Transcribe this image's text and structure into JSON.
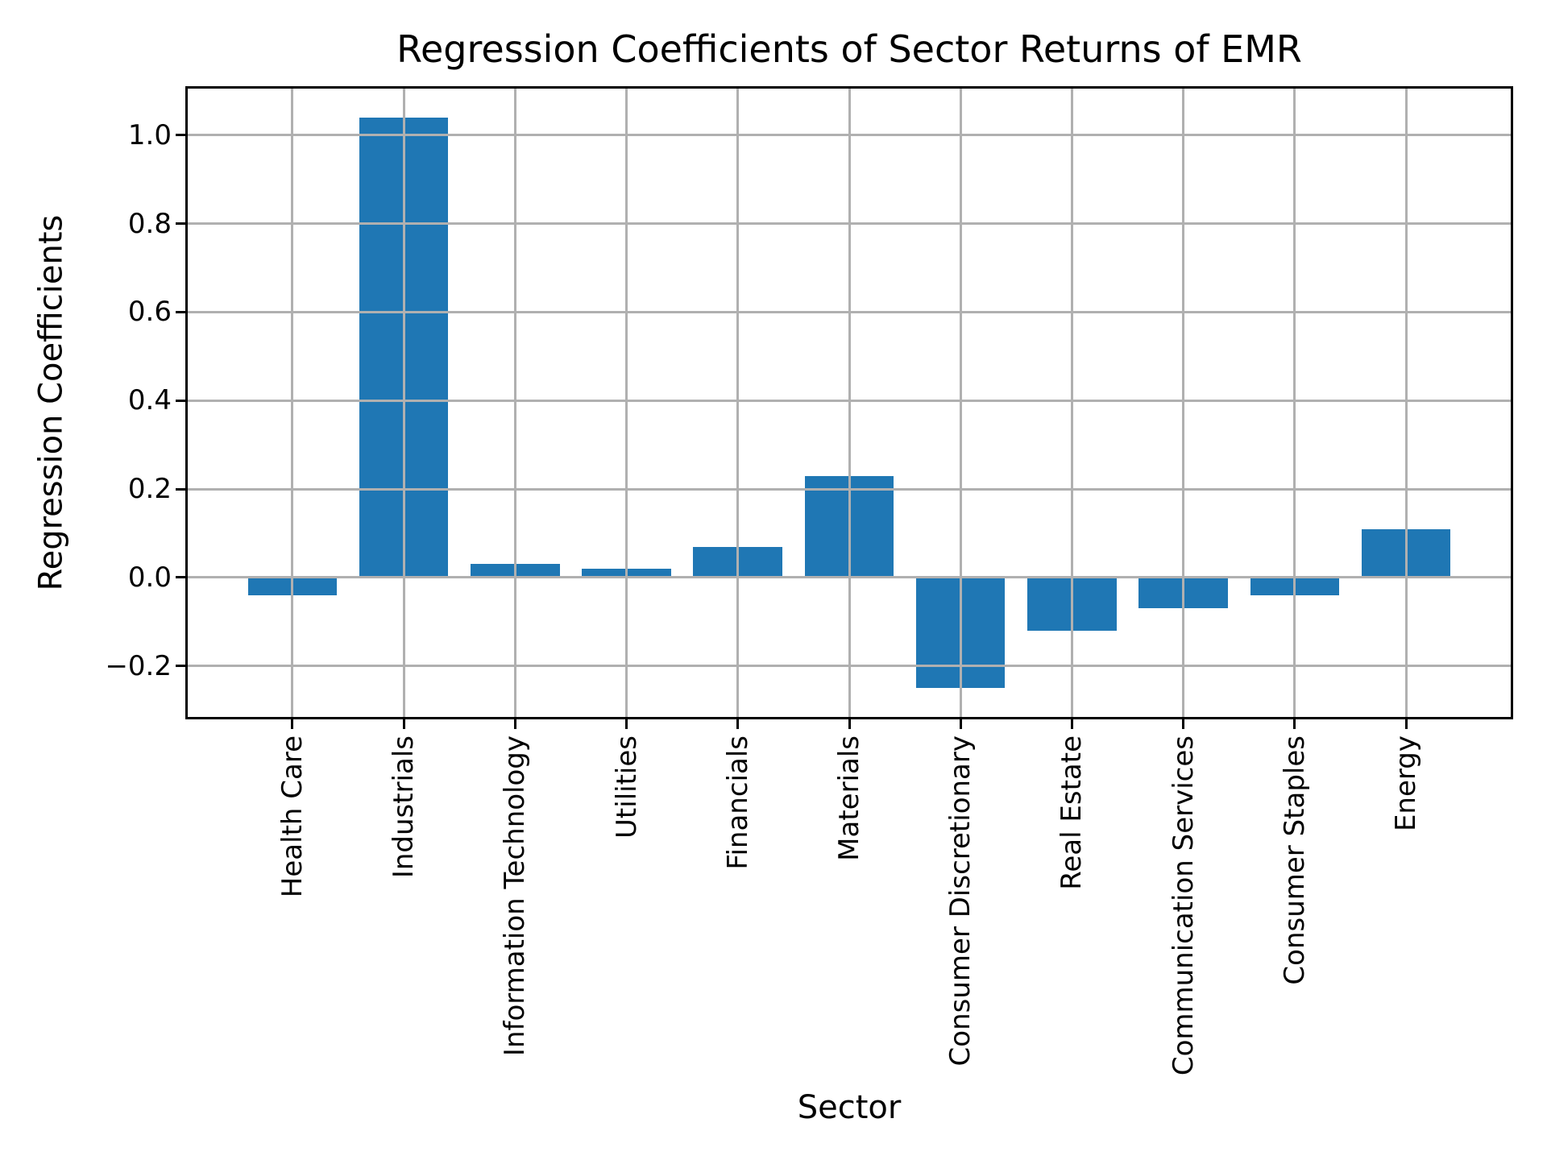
{
  "chart_data": {
    "type": "bar",
    "title": "Regression Coefficients of Sector Returns of EMR",
    "xlabel": "Sector",
    "ylabel": "Regression Coefficients",
    "categories": [
      "Health Care",
      "Industrials",
      "Information Technology",
      "Utilities",
      "Financials",
      "Materials",
      "Consumer Discretionary",
      "Real Estate",
      "Communication Services",
      "Consumer Staples",
      "Energy"
    ],
    "values": [
      -0.04,
      1.04,
      0.03,
      0.02,
      0.07,
      0.23,
      -0.25,
      -0.12,
      -0.07,
      -0.04,
      0.11
    ],
    "bar_color": "#1f77b4",
    "grid": true,
    "grid_color": "#b0b0b0",
    "axis_color": "#000000",
    "ylim": [
      -0.315,
      1.105
    ],
    "yticks": [
      1.0,
      0.8,
      0.6,
      0.4,
      0.2,
      0.0,
      -0.2
    ],
    "ytick_labels": [
      "1.0",
      "0.8",
      "0.6",
      "0.4",
      "0.2",
      "0.0",
      "−0.2"
    ],
    "legend_position": "none"
  }
}
